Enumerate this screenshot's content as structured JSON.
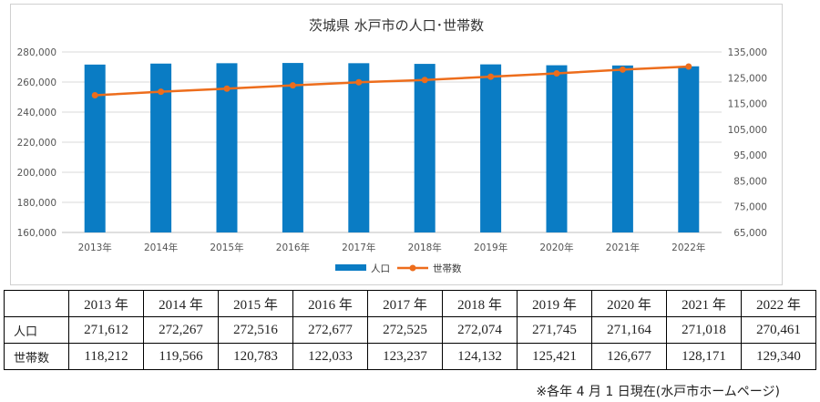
{
  "chart_data": {
    "type": "bar+line",
    "title": "茨城県 水戸市の人口･世帯数",
    "categories": [
      "2013年",
      "2014年",
      "2015年",
      "2016年",
      "2017年",
      "2018年",
      "2019年",
      "2020年",
      "2021年",
      "2022年"
    ],
    "series": [
      {
        "name": "人口",
        "type": "bar",
        "axis": "left",
        "color": "#0a7cc4",
        "values": [
          271612,
          272267,
          272516,
          272677,
          272525,
          272074,
          271745,
          271164,
          271018,
          270461
        ]
      },
      {
        "name": "世帯数",
        "type": "line",
        "axis": "right",
        "color": "#ed6d1c",
        "values": [
          118212,
          119566,
          120783,
          122033,
          123237,
          124132,
          125421,
          126677,
          128171,
          129340
        ]
      }
    ],
    "ylim_left": [
      160000,
      280000
    ],
    "yticks_left": [
      "160,000",
      "180,000",
      "200,000",
      "220,000",
      "240,000",
      "260,000",
      "280,000"
    ],
    "ylim_right": [
      65000,
      135000
    ],
    "yticks_right": [
      "65,000",
      "75,000",
      "85,000",
      "95,000",
      "105,000",
      "115,000",
      "125,000",
      "135,000"
    ],
    "grid": true,
    "legend": "bottom-center"
  },
  "table": {
    "header": [
      "",
      "2013 年",
      "2014 年",
      "2015 年",
      "2016 年",
      "2017 年",
      "2018 年",
      "2019 年",
      "2020 年",
      "2021 年",
      "2022 年"
    ],
    "rows": [
      [
        "人口",
        "271,612",
        "272,267",
        "272,516",
        "272,677",
        "272,525",
        "272,074",
        "271,745",
        "271,164",
        "271,018",
        "270,461"
      ],
      [
        "世帯数",
        "118,212",
        "119,566",
        "120,783",
        "122,033",
        "123,237",
        "124,132",
        "125,421",
        "126,677",
        "128,171",
        "129,340"
      ]
    ]
  },
  "note": "※各年 4 月 1 日現在(水戸市ホームページ)"
}
